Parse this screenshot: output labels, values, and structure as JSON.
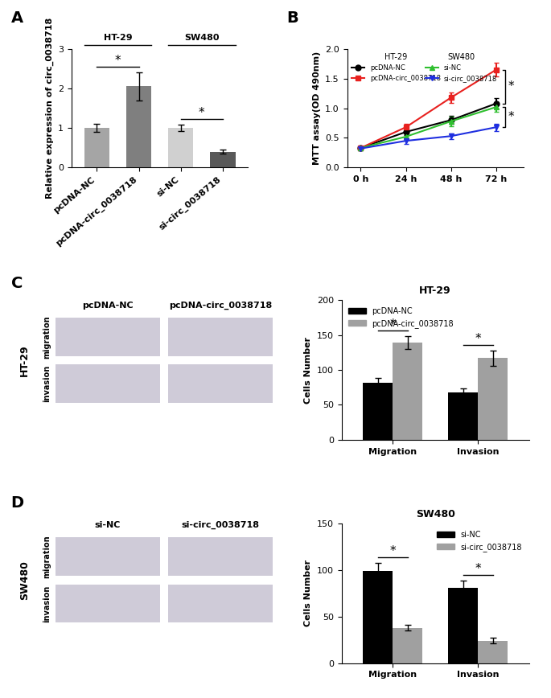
{
  "chart_data": [
    {
      "panel": "A",
      "type": "bar",
      "categories": [
        "pcDNA-NC",
        "pcDNA-circ_0038718",
        "si-NC",
        "si-circ_0038718"
      ],
      "values": [
        1.0,
        2.05,
        1.0,
        0.4
      ],
      "errors": [
        0.1,
        0.35,
        0.08,
        0.05
      ],
      "colors": [
        "#a5a5a5",
        "#7f7f7f",
        "#d0d0d0",
        "#595959"
      ],
      "y_label": "Relative expression of circ_0038718",
      "ylim": [
        0,
        3
      ],
      "yticks": [
        0,
        1,
        2,
        3
      ],
      "groups": [
        {
          "name": "HT-29",
          "members": [
            "pcDNA-NC",
            "pcDNA-circ_0038718"
          ]
        },
        {
          "name": "SW480",
          "members": [
            "si-NC",
            "si-circ_0038718"
          ]
        }
      ],
      "significance": [
        {
          "pair": [
            "pcDNA-NC",
            "pcDNA-circ_0038718"
          ],
          "label": "*"
        },
        {
          "pair": [
            "si-NC",
            "si-circ_0038718"
          ],
          "label": "*"
        }
      ]
    },
    {
      "panel": "B",
      "type": "line",
      "categories": [
        "0 h",
        "24 h",
        "48 h",
        "72 h"
      ],
      "series": [
        {
          "name": "pcDNA-NC",
          "group": "HT-29",
          "color": "#000000",
          "marker": "circle",
          "values": [
            0.33,
            0.6,
            0.8,
            1.08
          ],
          "errors": [
            0.03,
            0.06,
            0.07,
            0.09
          ]
        },
        {
          "name": "pcDNA-circ_0038718",
          "group": "HT-29",
          "color": "#e8211f",
          "marker": "square",
          "values": [
            0.33,
            0.68,
            1.18,
            1.65
          ],
          "errors": [
            0.03,
            0.05,
            0.09,
            0.12
          ]
        },
        {
          "name": "si-NC",
          "group": "SW480",
          "color": "#2fbf2f",
          "marker": "triangle_up",
          "values": [
            0.33,
            0.52,
            0.78,
            1.02
          ],
          "errors": [
            0.03,
            0.05,
            0.08,
            0.08
          ]
        },
        {
          "name": "si-circ_0038718",
          "group": "SW480",
          "color": "#1f2fe0",
          "marker": "triangle_down",
          "values": [
            0.32,
            0.45,
            0.53,
            0.68
          ],
          "errors": [
            0.03,
            0.05,
            0.05,
            0.06
          ]
        }
      ],
      "y_label": "MTT assay(OD 490nm)",
      "ylim": [
        0,
        2
      ],
      "yticks": [
        {
          "value": 0,
          "label": "0.0"
        },
        {
          "value": 0.5,
          "label": "0.5"
        },
        {
          "value": 1,
          "label": "1.0"
        },
        {
          "value": 1.5,
          "label": "1.5"
        },
        {
          "value": 2,
          "label": "2.0"
        }
      ],
      "legend": "upper left",
      "significance": [
        {
          "pair": [
            "pcDNA-circ_0038718",
            "pcDNA-NC"
          ],
          "label": "*"
        },
        {
          "pair": [
            "si-NC",
            "si-circ_0038718"
          ],
          "label": "*"
        }
      ]
    },
    {
      "panel": "C",
      "type": "bar",
      "title": "HT-29",
      "categories": [
        "Migration",
        "Invasion"
      ],
      "series": [
        {
          "name": "pcDNA-NC",
          "color": "#000000",
          "values": [
            82,
            68
          ],
          "errors": [
            7,
            6
          ]
        },
        {
          "name": "pcDNA-circ_0038718",
          "color": "#a0a0a0",
          "values": [
            139,
            117
          ],
          "errors": [
            9,
            11
          ]
        }
      ],
      "y_label": "Cells Number",
      "ylim": [
        0,
        200
      ],
      "yticks": [
        0,
        50,
        100,
        150,
        200
      ],
      "legend": "upper left",
      "significance": [
        {
          "category": "Migration",
          "label": "*"
        },
        {
          "category": "Invasion",
          "label": "*"
        }
      ]
    },
    {
      "panel": "D",
      "type": "bar",
      "title": "SW480",
      "categories": [
        "Migration",
        "Invasion"
      ],
      "series": [
        {
          "name": "si-NC",
          "color": "#000000",
          "values": [
            99,
            81
          ],
          "errors": [
            9,
            8
          ]
        },
        {
          "name": "si-circ_0038718",
          "color": "#a0a0a0",
          "values": [
            38,
            24
          ],
          "errors": [
            3,
            3
          ]
        }
      ],
      "y_label": "Cells Number",
      "ylim": [
        0,
        150
      ],
      "yticks": [
        0,
        50,
        100,
        150
      ],
      "legend": "upper right",
      "significance": [
        {
          "category": "Migration",
          "label": "*"
        },
        {
          "category": "Invasion",
          "label": "*"
        }
      ]
    }
  ],
  "image_panels": [
    {
      "cell_line": "HT-29",
      "columns": [
        "pcDNA-NC",
        "pcDNA-circ_0038718"
      ],
      "rows": [
        "migration",
        "invasion"
      ]
    },
    {
      "cell_line": "SW480",
      "columns": [
        "si-NC",
        "si-circ_0038718"
      ],
      "rows": [
        "migration",
        "invasion"
      ]
    }
  ]
}
